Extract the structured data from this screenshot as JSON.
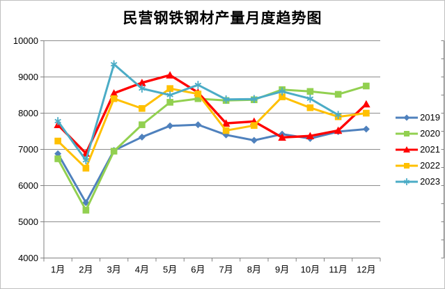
{
  "chart_data": {
    "type": "line",
    "title": "民营钢铁钢材产量月度趋势图",
    "xlabel": "",
    "ylabel": "",
    "categories": [
      "1月",
      "2月",
      "3月",
      "4月",
      "5月",
      "6月",
      "7月",
      "8月",
      "9月",
      "10月",
      "11月",
      "12月"
    ],
    "series": [
      {
        "name": "2019",
        "color": "#4F81BD",
        "marker": "diamond",
        "values": [
          6880,
          5530,
          6970,
          7340,
          7650,
          7680,
          7400,
          7250,
          7420,
          7300,
          7490,
          7560
        ]
      },
      {
        "name": "2020",
        "color": "#92D050",
        "marker": "square",
        "values": [
          6740,
          5320,
          6950,
          7680,
          8300,
          8400,
          8350,
          8370,
          8650,
          8600,
          8520,
          8750
        ]
      },
      {
        "name": "2021",
        "color": "#FF0000",
        "marker": "triangle",
        "values": [
          7680,
          6890,
          8550,
          8840,
          9050,
          8570,
          7720,
          7770,
          7330,
          7370,
          7520,
          8250
        ]
      },
      {
        "name": "2022",
        "color": "#FFC000",
        "marker": "square",
        "values": [
          7230,
          6480,
          8400,
          8130,
          8680,
          8530,
          7520,
          7660,
          8450,
          8150,
          7900,
          8000
        ]
      },
      {
        "name": "2023",
        "color": "#4BACC6",
        "marker": "asterisk",
        "values": [
          7780,
          6700,
          9350,
          8680,
          8500,
          8780,
          8380,
          8390,
          8600,
          8400,
          7950,
          null
        ]
      }
    ],
    "ylim": [
      4000,
      10000
    ],
    "ytick_step": 1000,
    "ytick_labels": [
      "4000",
      "5000",
      "6000",
      "7000",
      "8000",
      "9000",
      "10000"
    ],
    "grid": "horizontal",
    "legend_position": "right"
  },
  "styles": {
    "background": "#FFFFFF",
    "grid_color": "#8C8C8C",
    "axis_color": "#808080",
    "text_color": "#000000"
  }
}
